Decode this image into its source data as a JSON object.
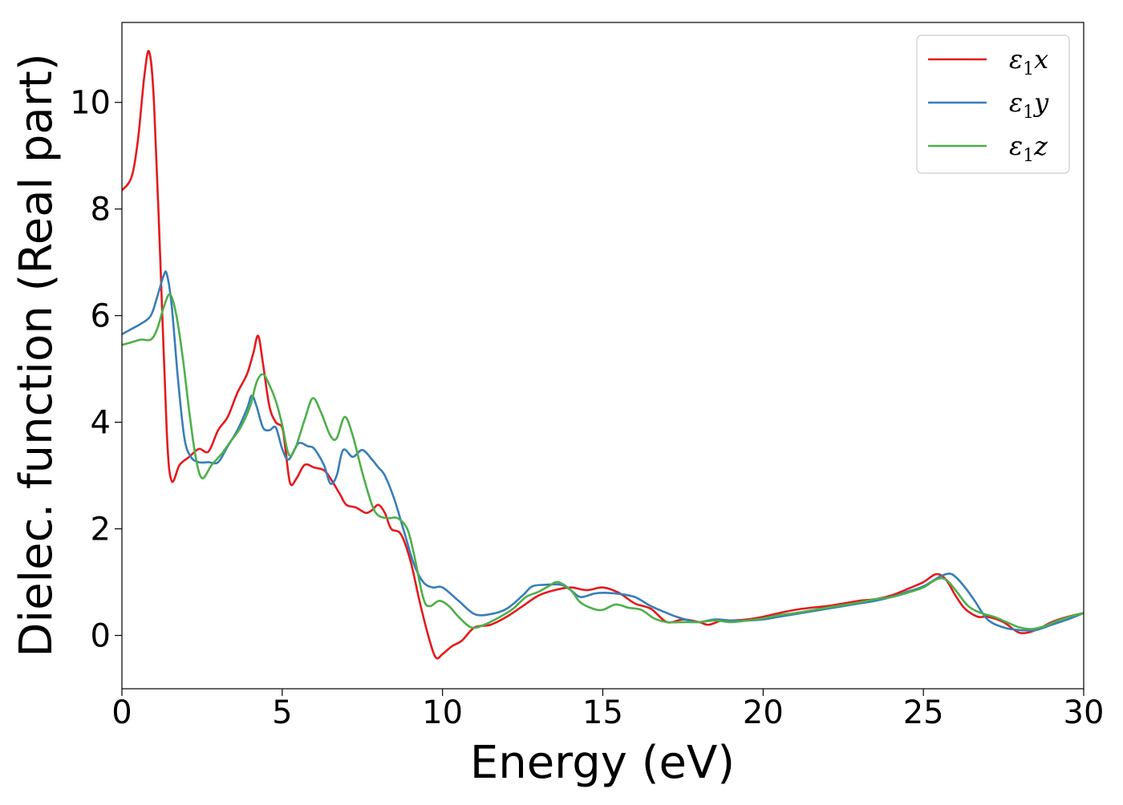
{
  "chart_data": {
    "type": "line",
    "title": "",
    "xlabel": "Energy (eV)",
    "ylabel": "Dielec. function (Real part)",
    "xlim": [
      0,
      30
    ],
    "ylim": [
      -1,
      11.5
    ],
    "xticks": [
      0,
      5,
      10,
      15,
      20,
      25,
      30
    ],
    "yticks": [
      0,
      2,
      4,
      6,
      8,
      10
    ],
    "grid": false,
    "legend_position": "top-right",
    "series": [
      {
        "name": "ε1x",
        "legend_base": "ε",
        "legend_sub": "1",
        "legend_suffix": "x",
        "color": "#e41a1c",
        "points": [
          [
            0,
            8.35
          ],
          [
            0.3,
            8.6
          ],
          [
            0.5,
            9.3
          ],
          [
            0.7,
            10.5
          ],
          [
            0.85,
            10.95
          ],
          [
            1.0,
            10.0
          ],
          [
            1.2,
            7.0
          ],
          [
            1.4,
            3.8
          ],
          [
            1.55,
            2.9
          ],
          [
            1.8,
            3.2
          ],
          [
            2.1,
            3.35
          ],
          [
            2.4,
            3.5
          ],
          [
            2.7,
            3.45
          ],
          [
            3.0,
            3.85
          ],
          [
            3.3,
            4.1
          ],
          [
            3.6,
            4.55
          ],
          [
            3.9,
            4.9
          ],
          [
            4.1,
            5.3
          ],
          [
            4.25,
            5.62
          ],
          [
            4.4,
            5.1
          ],
          [
            4.6,
            4.3
          ],
          [
            4.8,
            4.0
          ],
          [
            5.0,
            3.9
          ],
          [
            5.1,
            3.5
          ],
          [
            5.25,
            2.85
          ],
          [
            5.45,
            2.95
          ],
          [
            5.7,
            3.2
          ],
          [
            6.0,
            3.15
          ],
          [
            6.3,
            3.1
          ],
          [
            6.5,
            2.95
          ],
          [
            6.8,
            2.65
          ],
          [
            7.0,
            2.45
          ],
          [
            7.3,
            2.4
          ],
          [
            7.6,
            2.3
          ],
          [
            7.8,
            2.35
          ],
          [
            8.0,
            2.45
          ],
          [
            8.2,
            2.3
          ],
          [
            8.4,
            2.0
          ],
          [
            8.7,
            1.9
          ],
          [
            9.0,
            1.4
          ],
          [
            9.3,
            0.6
          ],
          [
            9.6,
            -0.1
          ],
          [
            9.8,
            -0.42
          ],
          [
            10.0,
            -0.35
          ],
          [
            10.3,
            -0.2
          ],
          [
            10.6,
            -0.1
          ],
          [
            11.0,
            0.15
          ],
          [
            11.5,
            0.2
          ],
          [
            12.0,
            0.35
          ],
          [
            12.5,
            0.55
          ],
          [
            13.0,
            0.75
          ],
          [
            13.5,
            0.85
          ],
          [
            14.0,
            0.9
          ],
          [
            14.5,
            0.85
          ],
          [
            15.0,
            0.9
          ],
          [
            15.5,
            0.8
          ],
          [
            16.0,
            0.6
          ],
          [
            16.5,
            0.5
          ],
          [
            17.0,
            0.25
          ],
          [
            17.5,
            0.3
          ],
          [
            18.0,
            0.25
          ],
          [
            18.3,
            0.2
          ],
          [
            18.7,
            0.28
          ],
          [
            19.0,
            0.28
          ],
          [
            19.5,
            0.3
          ],
          [
            20.0,
            0.35
          ],
          [
            20.5,
            0.42
          ],
          [
            21.0,
            0.48
          ],
          [
            21.5,
            0.52
          ],
          [
            22.0,
            0.55
          ],
          [
            22.5,
            0.6
          ],
          [
            23.0,
            0.65
          ],
          [
            23.5,
            0.68
          ],
          [
            24.0,
            0.75
          ],
          [
            24.5,
            0.87
          ],
          [
            25.0,
            1.0
          ],
          [
            25.4,
            1.15
          ],
          [
            25.7,
            1.05
          ],
          [
            26.0,
            0.75
          ],
          [
            26.3,
            0.5
          ],
          [
            26.7,
            0.35
          ],
          [
            27.0,
            0.35
          ],
          [
            27.5,
            0.25
          ],
          [
            28.0,
            0.05
          ],
          [
            28.5,
            0.1
          ],
          [
            29.0,
            0.25
          ],
          [
            29.5,
            0.35
          ],
          [
            30.0,
            0.42
          ]
        ]
      },
      {
        "name": "ε1y",
        "legend_base": "ε",
        "legend_sub": "1",
        "legend_suffix": "y",
        "color": "#377eb8",
        "points": [
          [
            0,
            5.65
          ],
          [
            0.3,
            5.75
          ],
          [
            0.6,
            5.85
          ],
          [
            0.9,
            6.0
          ],
          [
            1.1,
            6.35
          ],
          [
            1.3,
            6.75
          ],
          [
            1.4,
            6.78
          ],
          [
            1.55,
            6.2
          ],
          [
            1.75,
            4.8
          ],
          [
            1.95,
            3.7
          ],
          [
            2.15,
            3.35
          ],
          [
            2.4,
            3.25
          ],
          [
            2.7,
            3.25
          ],
          [
            3.0,
            3.25
          ],
          [
            3.3,
            3.55
          ],
          [
            3.6,
            3.85
          ],
          [
            3.9,
            4.25
          ],
          [
            4.05,
            4.5
          ],
          [
            4.2,
            4.3
          ],
          [
            4.4,
            3.9
          ],
          [
            4.6,
            3.85
          ],
          [
            4.8,
            3.9
          ],
          [
            5.0,
            3.5
          ],
          [
            5.2,
            3.3
          ],
          [
            5.5,
            3.6
          ],
          [
            5.8,
            3.55
          ],
          [
            6.0,
            3.5
          ],
          [
            6.3,
            3.2
          ],
          [
            6.5,
            2.85
          ],
          [
            6.7,
            3.0
          ],
          [
            6.9,
            3.48
          ],
          [
            7.2,
            3.35
          ],
          [
            7.5,
            3.48
          ],
          [
            7.8,
            3.3
          ],
          [
            8.0,
            3.15
          ],
          [
            8.2,
            3.0
          ],
          [
            8.5,
            2.55
          ],
          [
            8.8,
            1.95
          ],
          [
            9.1,
            1.35
          ],
          [
            9.4,
            1.0
          ],
          [
            9.7,
            0.9
          ],
          [
            10.0,
            0.9
          ],
          [
            10.5,
            0.65
          ],
          [
            11.0,
            0.4
          ],
          [
            11.5,
            0.4
          ],
          [
            12.0,
            0.5
          ],
          [
            12.5,
            0.75
          ],
          [
            12.8,
            0.92
          ],
          [
            13.2,
            0.95
          ],
          [
            13.7,
            0.95
          ],
          [
            14.0,
            0.85
          ],
          [
            14.3,
            0.72
          ],
          [
            14.7,
            0.78
          ],
          [
            15.0,
            0.8
          ],
          [
            15.5,
            0.78
          ],
          [
            16.0,
            0.72
          ],
          [
            16.5,
            0.55
          ],
          [
            17.0,
            0.42
          ],
          [
            17.3,
            0.35
          ],
          [
            17.7,
            0.28
          ],
          [
            18.0,
            0.25
          ],
          [
            18.5,
            0.3
          ],
          [
            19.0,
            0.28
          ],
          [
            19.5,
            0.28
          ],
          [
            20.0,
            0.3
          ],
          [
            20.5,
            0.35
          ],
          [
            21.0,
            0.4
          ],
          [
            21.5,
            0.45
          ],
          [
            22.0,
            0.5
          ],
          [
            22.5,
            0.55
          ],
          [
            23.0,
            0.6
          ],
          [
            23.5,
            0.65
          ],
          [
            24.0,
            0.72
          ],
          [
            24.5,
            0.82
          ],
          [
            25.0,
            0.92
          ],
          [
            25.5,
            1.1
          ],
          [
            25.8,
            1.16
          ],
          [
            26.0,
            1.1
          ],
          [
            26.3,
            0.9
          ],
          [
            26.6,
            0.65
          ],
          [
            27.0,
            0.3
          ],
          [
            27.5,
            0.15
          ],
          [
            28.0,
            0.1
          ],
          [
            28.5,
            0.1
          ],
          [
            29.0,
            0.2
          ],
          [
            29.5,
            0.3
          ],
          [
            30.0,
            0.42
          ]
        ]
      },
      {
        "name": "ε1z",
        "legend_base": "ε",
        "legend_sub": "1",
        "legend_suffix": "z",
        "color": "#4daf4a",
        "points": [
          [
            0,
            5.45
          ],
          [
            0.3,
            5.5
          ],
          [
            0.6,
            5.55
          ],
          [
            0.9,
            5.55
          ],
          [
            1.1,
            5.75
          ],
          [
            1.3,
            6.15
          ],
          [
            1.5,
            6.4
          ],
          [
            1.7,
            6.0
          ],
          [
            1.9,
            5.2
          ],
          [
            2.1,
            4.2
          ],
          [
            2.3,
            3.35
          ],
          [
            2.5,
            2.95
          ],
          [
            2.8,
            3.2
          ],
          [
            3.1,
            3.4
          ],
          [
            3.4,
            3.65
          ],
          [
            3.7,
            3.9
          ],
          [
            4.0,
            4.3
          ],
          [
            4.2,
            4.75
          ],
          [
            4.4,
            4.9
          ],
          [
            4.6,
            4.7
          ],
          [
            4.8,
            4.4
          ],
          [
            5.0,
            3.95
          ],
          [
            5.2,
            3.4
          ],
          [
            5.4,
            3.5
          ],
          [
            5.7,
            4.05
          ],
          [
            5.95,
            4.45
          ],
          [
            6.2,
            4.2
          ],
          [
            6.5,
            3.75
          ],
          [
            6.7,
            3.7
          ],
          [
            6.95,
            4.1
          ],
          [
            7.2,
            3.75
          ],
          [
            7.5,
            3.05
          ],
          [
            7.8,
            2.45
          ],
          [
            8.0,
            2.25
          ],
          [
            8.3,
            2.2
          ],
          [
            8.6,
            2.2
          ],
          [
            8.9,
            2.0
          ],
          [
            9.1,
            1.55
          ],
          [
            9.4,
            0.7
          ],
          [
            9.6,
            0.55
          ],
          [
            9.9,
            0.65
          ],
          [
            10.2,
            0.55
          ],
          [
            10.5,
            0.35
          ],
          [
            10.9,
            0.15
          ],
          [
            11.3,
            0.2
          ],
          [
            11.8,
            0.35
          ],
          [
            12.2,
            0.5
          ],
          [
            12.6,
            0.72
          ],
          [
            13.0,
            0.82
          ],
          [
            13.3,
            0.92
          ],
          [
            13.6,
            1.0
          ],
          [
            14.0,
            0.85
          ],
          [
            14.3,
            0.62
          ],
          [
            14.7,
            0.5
          ],
          [
            15.0,
            0.48
          ],
          [
            15.4,
            0.58
          ],
          [
            15.8,
            0.52
          ],
          [
            16.2,
            0.48
          ],
          [
            16.6,
            0.32
          ],
          [
            17.0,
            0.25
          ],
          [
            17.5,
            0.25
          ],
          [
            18.0,
            0.25
          ],
          [
            18.5,
            0.28
          ],
          [
            19.0,
            0.25
          ],
          [
            19.5,
            0.28
          ],
          [
            20.0,
            0.32
          ],
          [
            20.5,
            0.38
          ],
          [
            21.0,
            0.42
          ],
          [
            21.5,
            0.47
          ],
          [
            22.0,
            0.52
          ],
          [
            22.5,
            0.57
          ],
          [
            23.0,
            0.62
          ],
          [
            23.5,
            0.68
          ],
          [
            24.0,
            0.72
          ],
          [
            24.5,
            0.8
          ],
          [
            25.0,
            0.9
          ],
          [
            25.4,
            1.05
          ],
          [
            25.7,
            1.05
          ],
          [
            26.0,
            0.85
          ],
          [
            26.4,
            0.55
          ],
          [
            26.8,
            0.42
          ],
          [
            27.2,
            0.35
          ],
          [
            27.6,
            0.25
          ],
          [
            28.0,
            0.15
          ],
          [
            28.4,
            0.12
          ],
          [
            28.8,
            0.18
          ],
          [
            29.2,
            0.28
          ],
          [
            29.6,
            0.36
          ],
          [
            30.0,
            0.42
          ]
        ]
      }
    ]
  }
}
